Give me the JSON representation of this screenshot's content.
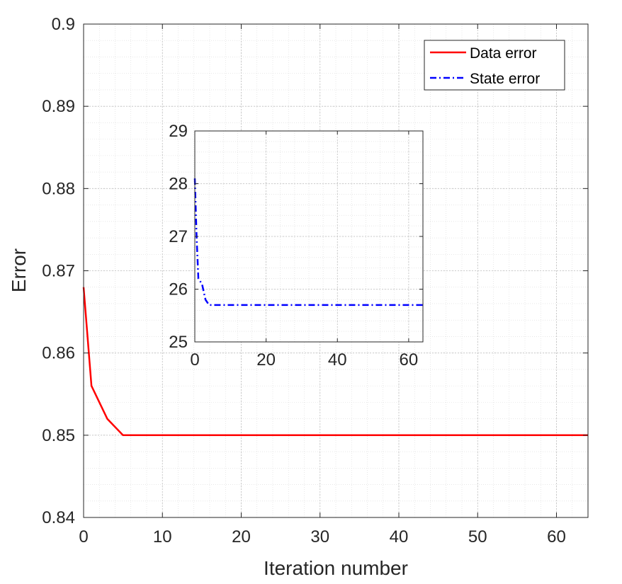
{
  "chart_data": [
    {
      "type": "line",
      "xlabel": "Iteration number",
      "ylabel": "Error",
      "xlim": [
        0,
        64
      ],
      "ylim": [
        0.84,
        0.9
      ],
      "xticks": [
        0,
        10,
        20,
        30,
        40,
        50,
        60
      ],
      "yticks": [
        0.84,
        0.85,
        0.86,
        0.87,
        0.88,
        0.89,
        0.9
      ],
      "xtick_labels": [
        "0",
        "10",
        "20",
        "30",
        "40",
        "50",
        "60"
      ],
      "ytick_labels": [
        "0.84",
        "0.85",
        "0.86",
        "0.87",
        "0.88",
        "0.89",
        "0.9"
      ],
      "grid": true,
      "minor_grid": true,
      "legend": {
        "position": "top-right",
        "entries": [
          {
            "label": "Data error",
            "color": "#ff0000",
            "style": "solid"
          },
          {
            "label": "State error",
            "color": "#0000ff",
            "style": "dash-dot"
          }
        ]
      },
      "series": [
        {
          "name": "Data error",
          "color": "#ff0000",
          "style": "solid",
          "x": [
            0,
            1,
            2,
            3,
            4,
            5,
            6,
            10,
            20,
            30,
            40,
            50,
            60,
            64
          ],
          "y": [
            0.868,
            0.856,
            0.854,
            0.852,
            0.851,
            0.85,
            0.85,
            0.85,
            0.85,
            0.85,
            0.85,
            0.85,
            0.85,
            0.85
          ]
        }
      ]
    },
    {
      "type": "line",
      "role": "inset",
      "xlim": [
        0,
        64
      ],
      "ylim": [
        25,
        29
      ],
      "xticks": [
        0,
        20,
        40,
        60
      ],
      "yticks": [
        25,
        26,
        27,
        28,
        29
      ],
      "xtick_labels": [
        "0",
        "20",
        "40",
        "60"
      ],
      "ytick_labels": [
        "25",
        "26",
        "27",
        "28",
        "29"
      ],
      "grid": true,
      "minor_grid": true,
      "series": [
        {
          "name": "State error",
          "color": "#0000ff",
          "style": "dash-dot",
          "x": [
            0,
            0.5,
            1,
            2,
            3,
            4,
            10,
            20,
            30,
            40,
            50,
            60,
            64
          ],
          "y": [
            28.1,
            27.0,
            26.2,
            26.1,
            25.8,
            25.7,
            25.7,
            25.7,
            25.7,
            25.7,
            25.7,
            25.7,
            25.7
          ]
        }
      ]
    }
  ]
}
